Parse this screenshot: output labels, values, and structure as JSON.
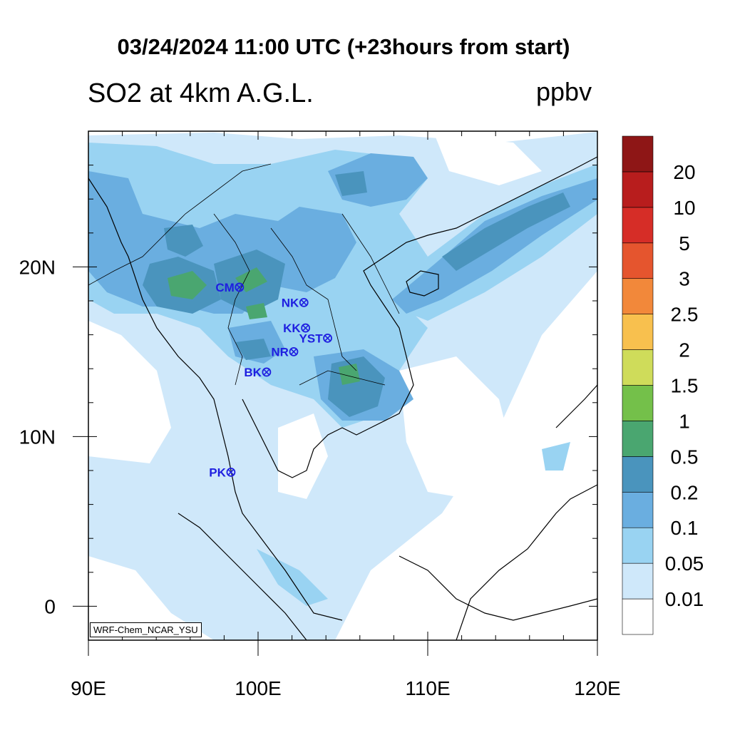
{
  "title": "03/24/2024 11:00 UTC (+23hours from start)",
  "subtitle": "SO2 at 4km A.G.L.",
  "units": "ppbv",
  "credit": "WRF-Chem_NCAR_YSU",
  "map": {
    "lon_range": [
      90,
      120
    ],
    "lat_range": [
      -2,
      28
    ],
    "x_ticks": [
      {
        "value": 90,
        "label": "90E"
      },
      {
        "value": 100,
        "label": "100E"
      },
      {
        "value": 110,
        "label": "110E"
      },
      {
        "value": 120,
        "label": "120E"
      }
    ],
    "y_ticks": [
      {
        "value": 0,
        "label": "0"
      },
      {
        "value": 10,
        "label": "10N"
      },
      {
        "value": 20,
        "label": "20N"
      }
    ]
  },
  "colorbar": {
    "levels": [
      "0.01",
      "0.05",
      "0.1",
      "0.2",
      "0.5",
      "1",
      "1.5",
      "2",
      "2.5",
      "3",
      "5",
      "10",
      "20"
    ],
    "colors": [
      "#ffffff",
      "#cfe8fa",
      "#99d3f2",
      "#6aaee0",
      "#4a94bd",
      "#4aa670",
      "#74c04a",
      "#cfdc5a",
      "#f8c04e",
      "#f2883a",
      "#e5552e",
      "#d62d27",
      "#b81d1d",
      "#8e1616"
    ]
  },
  "stations": [
    {
      "name": "CM",
      "lon": 98.9,
      "lat": 18.8
    },
    {
      "name": "NK",
      "lon": 102.7,
      "lat": 17.9
    },
    {
      "name": "KK",
      "lon": 102.8,
      "lat": 16.4
    },
    {
      "name": "YST",
      "lon": 104.1,
      "lat": 15.8
    },
    {
      "name": "NR",
      "lon": 102.1,
      "lat": 15.0
    },
    {
      "name": "BK",
      "lon": 100.5,
      "lat": 13.8
    },
    {
      "name": "PK",
      "lon": 98.4,
      "lat": 7.9
    }
  ]
}
